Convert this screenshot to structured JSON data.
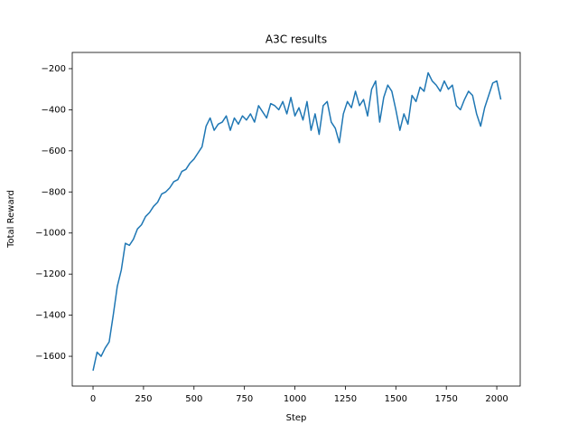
{
  "chart_data": {
    "type": "line",
    "title": "A3C results",
    "x_label": "Step",
    "y_label": "Total Reward",
    "x": [
      0,
      20,
      40,
      60,
      80,
      100,
      120,
      140,
      160,
      180,
      200,
      220,
      240,
      260,
      280,
      300,
      320,
      340,
      360,
      380,
      400,
      420,
      440,
      460,
      480,
      500,
      520,
      540,
      560,
      580,
      600,
      620,
      640,
      660,
      680,
      700,
      720,
      740,
      760,
      780,
      800,
      820,
      840,
      860,
      880,
      900,
      920,
      940,
      960,
      980,
      1000,
      1020,
      1040,
      1060,
      1080,
      1100,
      1120,
      1140,
      1160,
      1180,
      1200,
      1220,
      1240,
      1260,
      1280,
      1300,
      1320,
      1340,
      1360,
      1380,
      1400,
      1420,
      1440,
      1460,
      1480,
      1500,
      1520,
      1540,
      1560,
      1580,
      1600,
      1620,
      1640,
      1660,
      1680,
      1700,
      1720,
      1740,
      1760,
      1780,
      1800,
      1820,
      1840,
      1860,
      1880,
      1900,
      1920,
      1940,
      1960,
      1980,
      2000,
      2020
    ],
    "series": [
      {
        "name": "reward",
        "color": "#1f77b4",
        "values": [
          -1670,
          -1580,
          -1600,
          -1560,
          -1530,
          -1400,
          -1260,
          -1180,
          -1050,
          -1060,
          -1030,
          -980,
          -960,
          -920,
          -900,
          -870,
          -850,
          -810,
          -800,
          -780,
          -750,
          -740,
          -700,
          -690,
          -660,
          -640,
          -610,
          -580,
          -480,
          -440,
          -500,
          -470,
          -460,
          -430,
          -500,
          -440,
          -470,
          -430,
          -450,
          -420,
          -460,
          -380,
          -410,
          -440,
          -370,
          -380,
          -400,
          -360,
          -420,
          -340,
          -430,
          -390,
          -450,
          -360,
          -500,
          -420,
          -520,
          -380,
          -360,
          -460,
          -490,
          -560,
          -420,
          -360,
          -390,
          -310,
          -380,
          -350,
          -430,
          -300,
          -260,
          -460,
          -340,
          -280,
          -310,
          -400,
          -500,
          -420,
          -470,
          -330,
          -360,
          -290,
          -310,
          -220,
          -260,
          -280,
          -310,
          -260,
          -300,
          -280,
          -380,
          -400,
          -350,
          -310,
          -330,
          -420,
          -480,
          -390,
          -330,
          -270,
          -260,
          -350
        ]
      }
    ],
    "xlim": [
      -103,
      2116
    ],
    "ylim": [
      -1745,
      -121
    ],
    "xticks": [
      0,
      250,
      500,
      750,
      1000,
      1250,
      1500,
      1750,
      2000
    ],
    "yticks": [
      {
        "value": -1600,
        "label": "−1600"
      },
      {
        "value": -1400,
        "label": "−1400"
      },
      {
        "value": -1200,
        "label": "−1200"
      },
      {
        "value": -1000,
        "label": "−1000"
      },
      {
        "value": -800,
        "label": "−800"
      },
      {
        "value": -600,
        "label": "−600"
      },
      {
        "value": -400,
        "label": "−400"
      },
      {
        "value": -200,
        "label": "−200"
      }
    ],
    "grid": false
  }
}
